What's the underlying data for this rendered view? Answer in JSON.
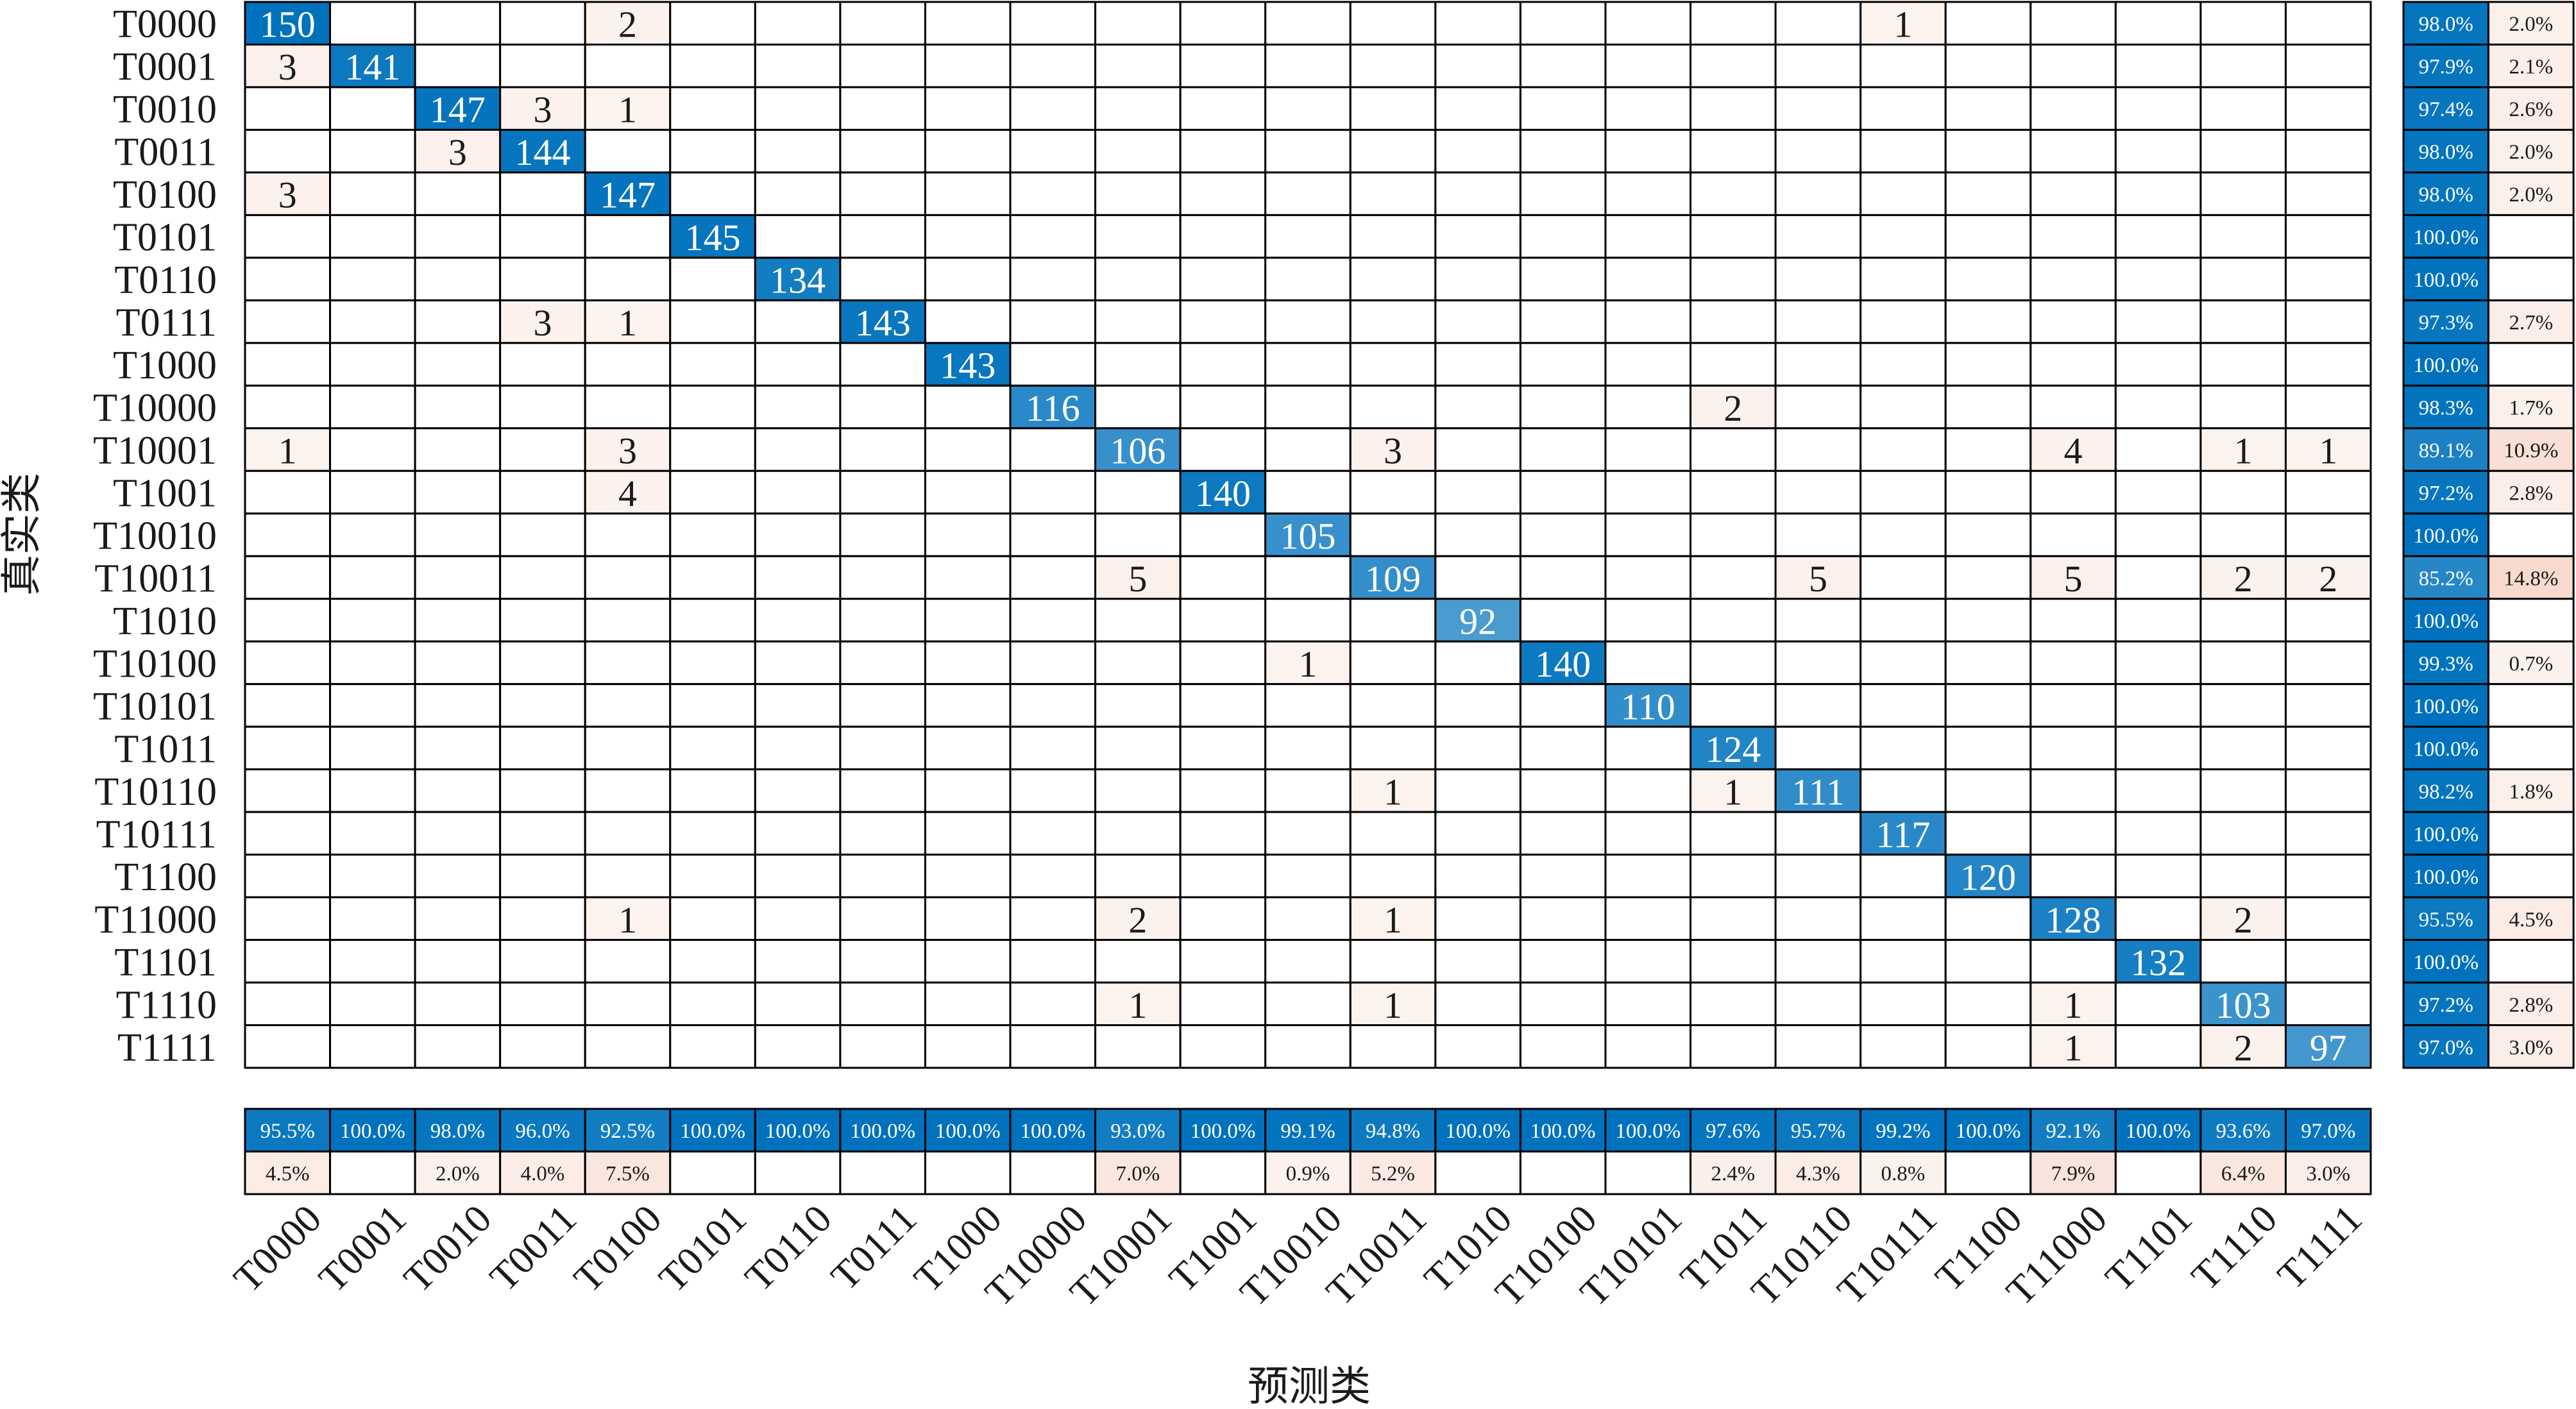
{
  "chart_data": {
    "type": "confusion_matrix",
    "x_label": "预测类",
    "y_label": "真实类",
    "diagonal_color": "#0072BD",
    "off_diagonal_color": "#D95319",
    "categories": [
      "T0000",
      "T0001",
      "T0010",
      "T0011",
      "T0100",
      "T0101",
      "T0110",
      "T0111",
      "T1000",
      "T10000",
      "T10001",
      "T1001",
      "T10010",
      "T10011",
      "T1010",
      "T10100",
      "T10101",
      "T1011",
      "T10110",
      "T10111",
      "T1100",
      "T11000",
      "T1101",
      "T1110",
      "T1111"
    ],
    "matrix": [
      [
        150,
        null,
        null,
        null,
        2,
        null,
        null,
        null,
        null,
        null,
        null,
        null,
        null,
        null,
        null,
        null,
        null,
        null,
        null,
        1,
        null,
        null,
        null,
        null,
        null
      ],
      [
        3,
        141,
        null,
        null,
        null,
        null,
        null,
        null,
        null,
        null,
        null,
        null,
        null,
        null,
        null,
        null,
        null,
        null,
        null,
        null,
        null,
        null,
        null,
        null,
        null
      ],
      [
        null,
        null,
        147,
        3,
        1,
        null,
        null,
        null,
        null,
        null,
        null,
        null,
        null,
        null,
        null,
        null,
        null,
        null,
        null,
        null,
        null,
        null,
        null,
        null,
        null
      ],
      [
        null,
        null,
        3,
        144,
        null,
        null,
        null,
        null,
        null,
        null,
        null,
        null,
        null,
        null,
        null,
        null,
        null,
        null,
        null,
        null,
        null,
        null,
        null,
        null,
        null
      ],
      [
        3,
        null,
        null,
        null,
        147,
        null,
        null,
        null,
        null,
        null,
        null,
        null,
        null,
        null,
        null,
        null,
        null,
        null,
        null,
        null,
        null,
        null,
        null,
        null,
        null
      ],
      [
        null,
        null,
        null,
        null,
        null,
        145,
        null,
        null,
        null,
        null,
        null,
        null,
        null,
        null,
        null,
        null,
        null,
        null,
        null,
        null,
        null,
        null,
        null,
        null,
        null
      ],
      [
        null,
        null,
        null,
        null,
        null,
        null,
        134,
        null,
        null,
        null,
        null,
        null,
        null,
        null,
        null,
        null,
        null,
        null,
        null,
        null,
        null,
        null,
        null,
        null,
        null
      ],
      [
        null,
        null,
        null,
        3,
        1,
        null,
        null,
        143,
        null,
        null,
        null,
        null,
        null,
        null,
        null,
        null,
        null,
        null,
        null,
        null,
        null,
        null,
        null,
        null,
        null
      ],
      [
        null,
        null,
        null,
        null,
        null,
        null,
        null,
        null,
        143,
        null,
        null,
        null,
        null,
        null,
        null,
        null,
        null,
        null,
        null,
        null,
        null,
        null,
        null,
        null,
        null
      ],
      [
        null,
        null,
        null,
        null,
        null,
        null,
        null,
        null,
        null,
        116,
        null,
        null,
        null,
        null,
        null,
        null,
        null,
        2,
        null,
        null,
        null,
        null,
        null,
        null,
        null
      ],
      [
        1,
        null,
        null,
        null,
        3,
        null,
        null,
        null,
        null,
        null,
        106,
        null,
        null,
        3,
        null,
        null,
        null,
        null,
        null,
        null,
        null,
        4,
        null,
        1,
        1
      ],
      [
        null,
        null,
        null,
        null,
        4,
        null,
        null,
        null,
        null,
        null,
        null,
        140,
        null,
        null,
        null,
        null,
        null,
        null,
        null,
        null,
        null,
        null,
        null,
        null,
        null
      ],
      [
        null,
        null,
        null,
        null,
        null,
        null,
        null,
        null,
        null,
        null,
        null,
        null,
        105,
        null,
        null,
        null,
        null,
        null,
        null,
        null,
        null,
        null,
        null,
        null,
        null
      ],
      [
        null,
        null,
        null,
        null,
        null,
        null,
        null,
        null,
        null,
        null,
        5,
        null,
        null,
        109,
        null,
        null,
        null,
        null,
        5,
        null,
        null,
        5,
        null,
        2,
        2
      ],
      [
        null,
        null,
        null,
        null,
        null,
        null,
        null,
        null,
        null,
        null,
        null,
        null,
        null,
        null,
        92,
        null,
        null,
        null,
        null,
        null,
        null,
        null,
        null,
        null,
        null
      ],
      [
        null,
        null,
        null,
        null,
        null,
        null,
        null,
        null,
        null,
        null,
        null,
        null,
        1,
        null,
        null,
        140,
        null,
        null,
        null,
        null,
        null,
        null,
        null,
        null,
        null
      ],
      [
        null,
        null,
        null,
        null,
        null,
        null,
        null,
        null,
        null,
        null,
        null,
        null,
        null,
        null,
        null,
        null,
        110,
        null,
        null,
        null,
        null,
        null,
        null,
        null,
        null
      ],
      [
        null,
        null,
        null,
        null,
        null,
        null,
        null,
        null,
        null,
        null,
        null,
        null,
        null,
        null,
        null,
        null,
        null,
        124,
        null,
        null,
        null,
        null,
        null,
        null,
        null
      ],
      [
        null,
        null,
        null,
        null,
        null,
        null,
        null,
        null,
        null,
        null,
        null,
        null,
        null,
        1,
        null,
        null,
        null,
        1,
        111,
        null,
        null,
        null,
        null,
        null,
        null
      ],
      [
        null,
        null,
        null,
        null,
        null,
        null,
        null,
        null,
        null,
        null,
        null,
        null,
        null,
        null,
        null,
        null,
        null,
        null,
        null,
        117,
        null,
        null,
        null,
        null,
        null
      ],
      [
        null,
        null,
        null,
        null,
        null,
        null,
        null,
        null,
        null,
        null,
        null,
        null,
        null,
        null,
        null,
        null,
        null,
        null,
        null,
        null,
        120,
        null,
        null,
        null,
        null
      ],
      [
        null,
        null,
        null,
        null,
        1,
        null,
        null,
        null,
        null,
        null,
        2,
        null,
        null,
        1,
        null,
        null,
        null,
        null,
        null,
        null,
        null,
        128,
        null,
        2,
        null
      ],
      [
        null,
        null,
        null,
        null,
        null,
        null,
        null,
        null,
        null,
        null,
        null,
        null,
        null,
        null,
        null,
        null,
        null,
        null,
        null,
        null,
        null,
        null,
        132,
        null,
        null
      ],
      [
        null,
        null,
        null,
        null,
        null,
        null,
        null,
        null,
        null,
        null,
        1,
        null,
        null,
        1,
        null,
        null,
        null,
        null,
        null,
        null,
        null,
        1,
        null,
        103,
        null
      ],
      [
        null,
        null,
        null,
        null,
        null,
        null,
        null,
        null,
        null,
        null,
        null,
        null,
        null,
        null,
        null,
        null,
        null,
        null,
        null,
        null,
        null,
        1,
        null,
        2,
        97
      ]
    ],
    "row_summary": {
      "correct": {
        "values": [
          98.0,
          97.9,
          97.4,
          98.0,
          98.0,
          100.0,
          100.0,
          97.3,
          100.0,
          98.3,
          89.1,
          97.2,
          100.0,
          85.2,
          100.0,
          99.3,
          100.0,
          100.0,
          98.2,
          100.0,
          100.0,
          95.5,
          100.0,
          97.2,
          97.0
        ],
        "value_labels": [
          "98.0%",
          "97.9%",
          "97.4%",
          "98.0%",
          "98.0%",
          "100.0%",
          "100.0%",
          "97.3%",
          "100.0%",
          "98.3%",
          "89.1%",
          "97.2%",
          "100.0%",
          "85.2%",
          "100.0%",
          "99.3%",
          "100.0%",
          "100.0%",
          "98.2%",
          "100.0%",
          "100.0%",
          "95.5%",
          "100.0%",
          "97.2%",
          "97.0%"
        ]
      },
      "incorrect": {
        "values": [
          2.0,
          2.1,
          2.6,
          2.0,
          2.0,
          null,
          null,
          2.7,
          null,
          1.7,
          10.9,
          2.8,
          null,
          14.8,
          null,
          0.7,
          null,
          null,
          1.8,
          null,
          null,
          4.5,
          null,
          2.8,
          3.0
        ],
        "value_labels": [
          "2.0%",
          "2.1%",
          "2.6%",
          "2.0%",
          "2.0%",
          null,
          null,
          "2.7%",
          null,
          "1.7%",
          "10.9%",
          "2.8%",
          null,
          "14.8%",
          null,
          "0.7%",
          null,
          null,
          "1.8%",
          null,
          null,
          "4.5%",
          null,
          "2.8%",
          "3.0%"
        ]
      }
    },
    "column_summary": {
      "correct": {
        "values": [
          95.5,
          100.0,
          98.0,
          96.0,
          92.5,
          100.0,
          100.0,
          100.0,
          100.0,
          100.0,
          93.0,
          100.0,
          99.1,
          94.8,
          100.0,
          100.0,
          100.0,
          97.6,
          95.7,
          99.2,
          100.0,
          92.1,
          100.0,
          93.6,
          97.0
        ],
        "value_labels": [
          "95.5%",
          "100.0%",
          "98.0%",
          "96.0%",
          "92.5%",
          "100.0%",
          "100.0%",
          "100.0%",
          "100.0%",
          "100.0%",
          "93.0%",
          "100.0%",
          "99.1%",
          "94.8%",
          "100.0%",
          "100.0%",
          "100.0%",
          "97.6%",
          "95.7%",
          "99.2%",
          "100.0%",
          "92.1%",
          "100.0%",
          "93.6%",
          "97.0%"
        ]
      },
      "incorrect": {
        "values": [
          4.5,
          null,
          2.0,
          4.0,
          7.5,
          null,
          null,
          null,
          null,
          null,
          7.0,
          null,
          0.9,
          5.2,
          null,
          null,
          null,
          2.4,
          4.3,
          0.8,
          null,
          7.9,
          null,
          6.4,
          3.0
        ],
        "value_labels": [
          "4.5%",
          null,
          "2.0%",
          "4.0%",
          "7.5%",
          null,
          null,
          null,
          null,
          null,
          "7.0%",
          null,
          "0.9%",
          "5.2%",
          null,
          null,
          null,
          "2.4%",
          "4.3%",
          "0.8%",
          null,
          "7.9%",
          null,
          "6.4%",
          "3.0%"
        ]
      }
    }
  }
}
